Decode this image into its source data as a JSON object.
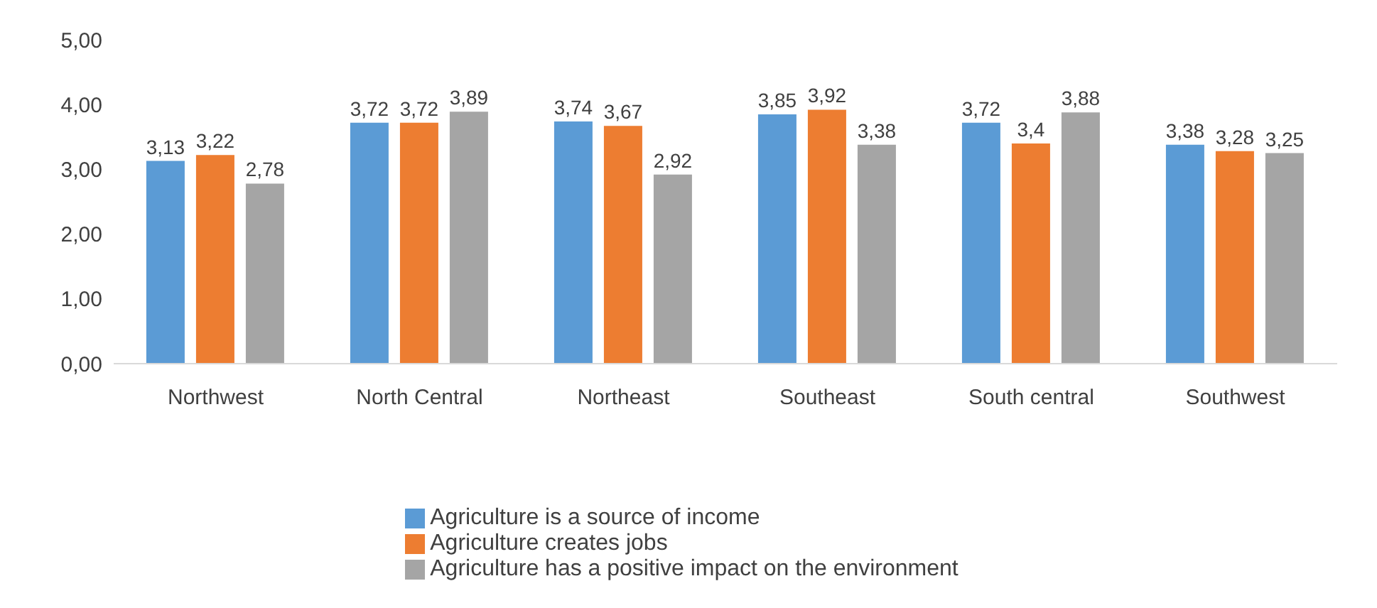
{
  "chart_data": {
    "type": "bar",
    "categories": [
      "Northwest",
      "North Central",
      "Northeast",
      "Southeast",
      "South central",
      "Southwest"
    ],
    "series": [
      {
        "name": "Agriculture is a source of income",
        "color": "#5b9bd5",
        "values": [
          3.13,
          3.72,
          3.74,
          3.85,
          3.72,
          3.38
        ],
        "value_labels": [
          "3,13",
          "3,72",
          "3,74",
          "3,85",
          "3,72",
          "3,38"
        ]
      },
      {
        "name": "Agriculture creates jobs",
        "color": "#ed7d31",
        "values": [
          3.22,
          3.72,
          3.67,
          3.92,
          3.4,
          3.28
        ],
        "value_labels": [
          "3,22",
          "3,72",
          "3,67",
          "3,92",
          "3,4",
          "3,28"
        ]
      },
      {
        "name": "Agriculture has a positive impact on the environment",
        "color": "#a5a5a5",
        "values": [
          2.78,
          3.89,
          2.92,
          3.38,
          3.88,
          3.25
        ],
        "value_labels": [
          "2,78",
          "3,89",
          "2,92",
          "3,38",
          "3,88",
          "3,25"
        ]
      }
    ],
    "ylim": [
      0,
      5
    ],
    "yticks": [
      {
        "value": 0,
        "label": "0,00"
      },
      {
        "value": 1,
        "label": "1,00"
      },
      {
        "value": 2,
        "label": "2,00"
      },
      {
        "value": 3,
        "label": "3,00"
      },
      {
        "value": 4,
        "label": "4,00"
      },
      {
        "value": 5,
        "label": "5,00"
      }
    ],
    "grid": false,
    "legend": "bottom"
  }
}
